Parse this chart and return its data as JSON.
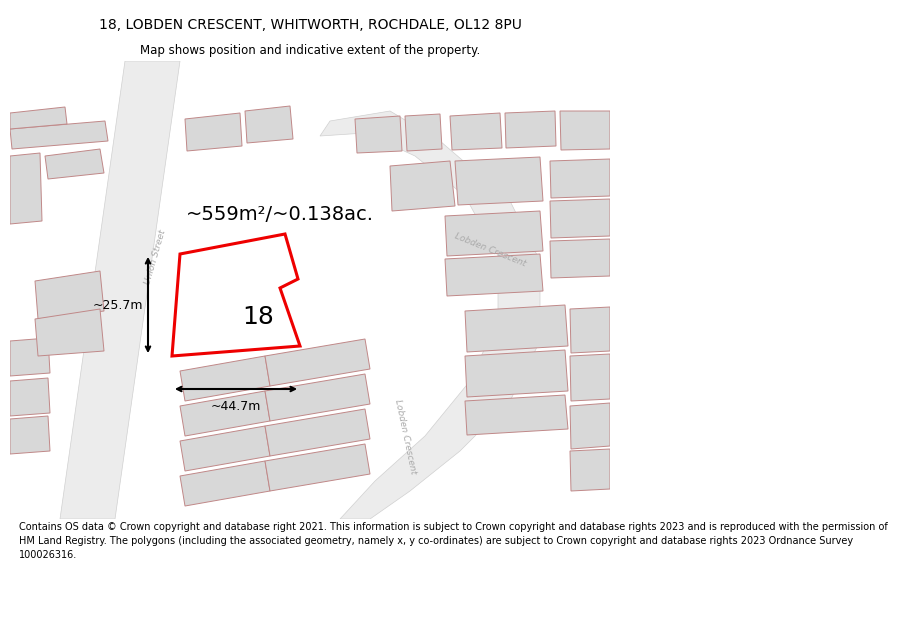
{
  "title_line1": "18, LOBDEN CRESCENT, WHITWORTH, ROCHDALE, OL12 8PU",
  "title_line2": "Map shows position and indicative extent of the property.",
  "footer_text": "Contains OS data © Crown copyright and database right 2021. This information is subject to Crown copyright and database rights 2023 and is reproduced with the permission of\nHM Land Registry. The polygons (including the associated geometry, namely x, y co-ordinates) are subject to Crown copyright and database rights 2023 Ordnance Survey\n100026316.",
  "area_label": "~559m²/~0.138ac.",
  "width_label": "~44.7m",
  "height_label": "~25.7m",
  "number_label": "18",
  "map_bg": "#f7f7f7",
  "building_fill": "#d8d8d8",
  "building_edge": "#c08888",
  "plot_fill": "#ffffff",
  "plot_edge": "#ee0000",
  "road_fill": "#efefef",
  "road_label_color": "#aaaaaa",
  "dim_color": "#000000",
  "title_fontsize": 10,
  "subtitle_fontsize": 8.5,
  "footer_fontsize": 7.0,
  "area_fontsize": 14,
  "number_fontsize": 18,
  "dim_fontsize": 9
}
